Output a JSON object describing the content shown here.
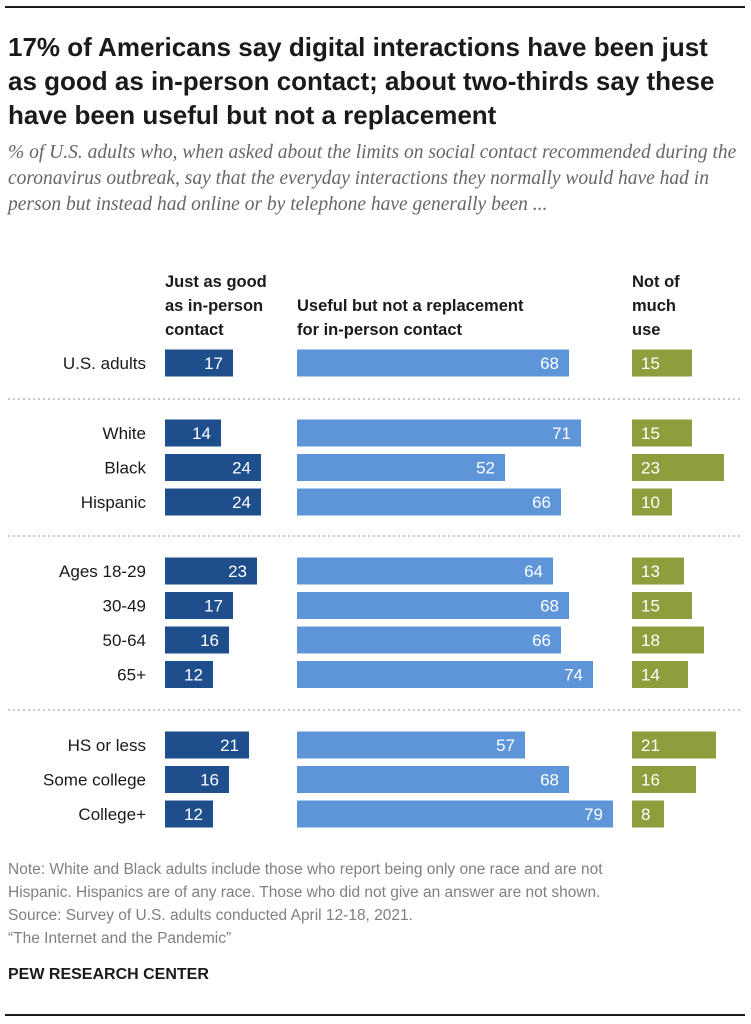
{
  "title": "17% of Americans say digital interactions have been just as good as in-person contact; about two-thirds say these have been useful but not a replacement",
  "subtitle": "% of U.S. adults who, when asked about the limits on social contact recommended during the coronavirus outbreak, say that the everyday interactions they normally would have had in person but instead had online or by telephone have generally been ...",
  "columns": {
    "good": "Just as good\nas in-person\ncontact",
    "useful": "Useful but not a replacement\nfor in-person contact",
    "notuse": "Not of\nmuch\nuse"
  },
  "colors": {
    "good": "#1f4e8c",
    "useful": "#5d95d8",
    "notuse": "#8f9e3c",
    "divider": "#b5b5b5"
  },
  "chart_data": {
    "type": "bar",
    "orientation": "horizontal",
    "stacked": false,
    "groups": [
      {
        "rows": [
          {
            "label": "U.S. adults",
            "good": 17,
            "useful": 68,
            "notuse": 15
          }
        ]
      },
      {
        "rows": [
          {
            "label": "White",
            "good": 14,
            "useful": 71,
            "notuse": 15
          },
          {
            "label": "Black",
            "good": 24,
            "useful": 52,
            "notuse": 23
          },
          {
            "label": "Hispanic",
            "good": 24,
            "useful": 66,
            "notuse": 10
          }
        ]
      },
      {
        "rows": [
          {
            "label": "Ages 18-29",
            "good": 23,
            "useful": 64,
            "notuse": 13
          },
          {
            "label": "30-49",
            "good": 17,
            "useful": 68,
            "notuse": 15
          },
          {
            "label": "50-64",
            "good": 16,
            "useful": 66,
            "notuse": 18
          },
          {
            "label": "65+",
            "good": 12,
            "useful": 74,
            "notuse": 14
          }
        ]
      },
      {
        "rows": [
          {
            "label": "HS or less",
            "good": 21,
            "useful": 57,
            "notuse": 21
          },
          {
            "label": "Some college",
            "good": 16,
            "useful": 68,
            "notuse": 16
          },
          {
            "label": "College+",
            "good": 12,
            "useful": 79,
            "notuse": 8
          }
        ]
      }
    ]
  },
  "note": "Note: White and Black adults include those who report being only one race and are not\nHispanic. Hispanics are of any race. Those who did not give an answer are not shown.\nSource: Survey of U.S. adults conducted April 12-18, 2021.\n“The Internet and the Pandemic”",
  "source": "PEW RESEARCH CENTER"
}
